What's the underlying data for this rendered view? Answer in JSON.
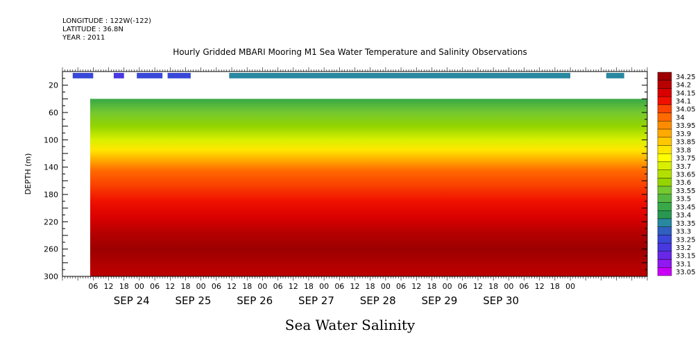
{
  "meta": {
    "longitude": "LONGITUDE : 122W(-122)",
    "latitude": "LATITUDE : 36.8N",
    "year": "YEAR : 2011"
  },
  "chart_data": {
    "type": "heatmap",
    "title": "Hourly Gridded MBARI Mooring M1 Sea Water Temperature and Salinity Observations",
    "subtitle": "Sea Water Salinity",
    "ylabel": "DEPTH (m)",
    "xlabel": "",
    "ylim": [
      300,
      0
    ],
    "y_inverted": true,
    "y_ticks": [
      20,
      60,
      100,
      140,
      180,
      220,
      260,
      300
    ],
    "x_hour_labels": [
      "06",
      "12",
      "18",
      "00",
      "06",
      "12",
      "18",
      "00",
      "06",
      "12",
      "18",
      "00",
      "06",
      "12",
      "18",
      "00",
      "06",
      "12",
      "18",
      "00",
      "06",
      "12",
      "18",
      "00",
      "06",
      "12",
      "18",
      "00",
      "06",
      "12",
      "18",
      "00"
    ],
    "x_day_labels": [
      "SEP 24",
      "SEP 25",
      "SEP 26",
      "SEP 27",
      "SEP 28",
      "SEP 29",
      "SEP 30"
    ],
    "colorbar_levels": [
      "34.25",
      "34.2",
      "34.15",
      "34.1",
      "34.05",
      "34",
      "33.95",
      "33.9",
      "33.85",
      "33.8",
      "33.75",
      "33.7",
      "33.65",
      "33.6",
      "33.55",
      "33.5",
      "33.45",
      "33.4",
      "33.35",
      "33.3",
      "33.25",
      "33.2",
      "33.15",
      "33.1",
      "33.05"
    ],
    "colorbar_colors": [
      "#9c0000",
      "#b80000",
      "#d80000",
      "#f01000",
      "#fa4400",
      "#ff6a00",
      "#ff8c00",
      "#ffaa00",
      "#ffc800",
      "#ffe600",
      "#ffff00",
      "#d8f000",
      "#b4e000",
      "#94d400",
      "#74c830",
      "#54b840",
      "#38a848",
      "#289850",
      "#2888a0",
      "#3060c0",
      "#3848d8",
      "#4838e0",
      "#6828e8",
      "#9018f0",
      "#c800f8"
    ],
    "depth_profile": [
      {
        "depth": 40,
        "salinity": 33.45
      },
      {
        "depth": 60,
        "salinity": 33.55
      },
      {
        "depth": 80,
        "salinity": 33.6
      },
      {
        "depth": 100,
        "salinity": 33.7
      },
      {
        "depth": 115,
        "salinity": 33.8
      },
      {
        "depth": 130,
        "salinity": 33.9
      },
      {
        "depth": 145,
        "salinity": 34.0
      },
      {
        "depth": 165,
        "salinity": 34.05
      },
      {
        "depth": 190,
        "salinity": 34.1
      },
      {
        "depth": 215,
        "salinity": 34.15
      },
      {
        "depth": 235,
        "salinity": 34.2
      },
      {
        "depth": 260,
        "salinity": 34.25
      },
      {
        "depth": 290,
        "salinity": 34.2
      }
    ],
    "surface_observations": [
      {
        "start_hour": 4,
        "end_hour": 12,
        "salinity": 33.25
      },
      {
        "start_hour": 20,
        "end_hour": 24,
        "salinity": 33.2
      },
      {
        "start_hour": 29,
        "end_hour": 39,
        "salinity": 33.25
      },
      {
        "start_hour": 41,
        "end_hour": 50,
        "salinity": 33.25
      },
      {
        "start_hour": 65,
        "end_hour": 198,
        "salinity": 33.35
      },
      {
        "start_hour": 212,
        "end_hour": 219,
        "salinity": 33.35
      }
    ]
  }
}
